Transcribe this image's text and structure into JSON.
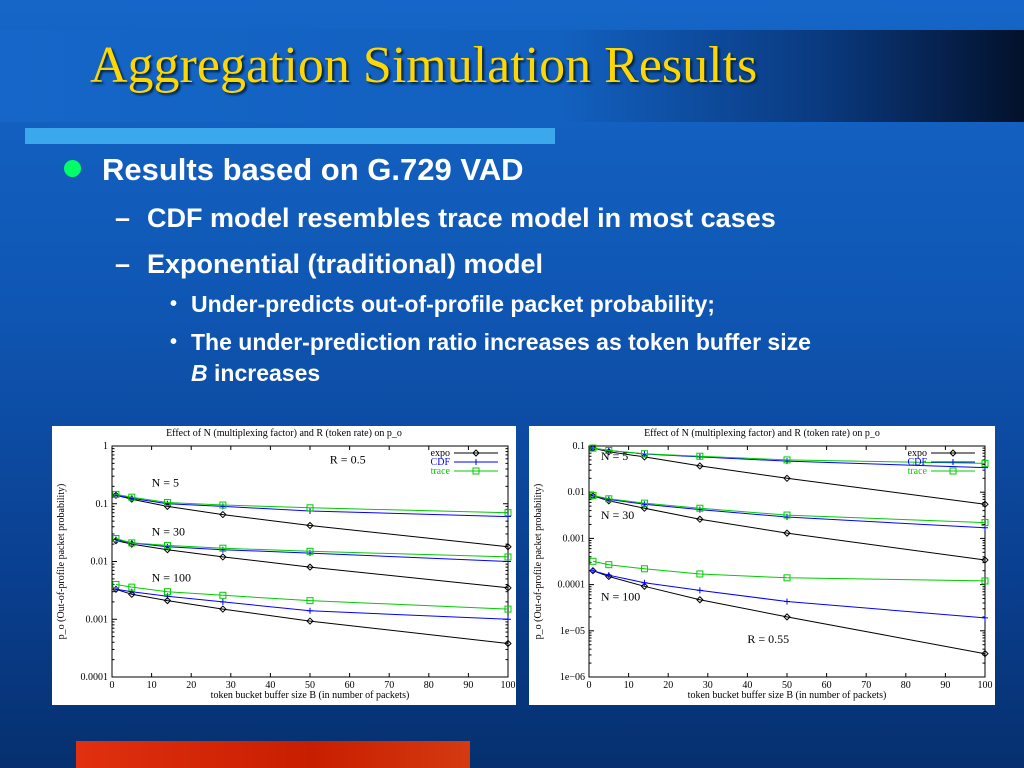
{
  "slide": {
    "title": "Aggregation Simulation Results",
    "bullets": {
      "level1": "Results based on G.729 VAD",
      "level2_a": "CDF model resembles trace model in most cases",
      "level2_b": "Exponential (traditional) model",
      "level3_a": "Under-predicts out-of-profile packet probability;",
      "level3_b_line1": "The under-prediction ratio increases as token buffer size",
      "level3_b_italic": "B",
      "level3_b_line2": " increases"
    },
    "colors": {
      "title": "#ffd700",
      "bullet": "#00ff66",
      "expo": "#000000",
      "cdf": "#0000ff",
      "trace": "#00cc00"
    }
  },
  "chart_data": [
    {
      "type": "line",
      "title": "Effect of N (multiplexing factor) and R (token rate) on p_o",
      "xlabel": "token bucket buffer size B (in number of packets)",
      "ylabel": "p_o (Out-of-profile packet probability)",
      "xlim": [
        0,
        100
      ],
      "ylim": [
        0.0001,
        1
      ],
      "yscale": "log",
      "xticks": [
        "0",
        "10",
        "20",
        "30",
        "40",
        "50",
        "60",
        "70",
        "80",
        "90",
        "100"
      ],
      "yticks": [
        "1",
        "0.1",
        "0.01",
        "0.001",
        "0.0001"
      ],
      "legend": [
        "expo",
        "CDF",
        "trace"
      ],
      "legend_position": "top-right",
      "annotations": [
        {
          "text": "R = 0.5",
          "x": 55,
          "y": 0.5
        },
        {
          "text": "N = 5",
          "x": 10,
          "y": 0.2
        },
        {
          "text": "N = 30",
          "x": 10,
          "y": 0.028
        },
        {
          "text": "N = 100",
          "x": 10,
          "y": 0.0045
        }
      ],
      "x": [
        1,
        5,
        14,
        28,
        50,
        100
      ],
      "series": [
        {
          "name": "expo",
          "group": "N = 5",
          "values": [
            0.14,
            0.12,
            0.09,
            0.065,
            0.042,
            0.018
          ]
        },
        {
          "name": "CDF",
          "group": "N = 5",
          "values": [
            0.14,
            0.125,
            0.1,
            0.09,
            0.075,
            0.06
          ]
        },
        {
          "name": "trace",
          "group": "N = 5",
          "values": [
            0.145,
            0.13,
            0.105,
            0.095,
            0.085,
            0.07
          ]
        },
        {
          "name": "expo",
          "group": "N = 30",
          "values": [
            0.023,
            0.02,
            0.016,
            0.012,
            0.008,
            0.0035
          ]
        },
        {
          "name": "CDF",
          "group": "N = 30",
          "values": [
            0.024,
            0.021,
            0.018,
            0.016,
            0.014,
            0.01
          ]
        },
        {
          "name": "trace",
          "group": "N = 30",
          "values": [
            0.025,
            0.021,
            0.019,
            0.017,
            0.015,
            0.012
          ]
        },
        {
          "name": "expo",
          "group": "N = 100",
          "values": [
            0.0033,
            0.0027,
            0.0021,
            0.0015,
            0.00093,
            0.00038
          ]
        },
        {
          "name": "CDF",
          "group": "N = 100",
          "values": [
            0.0033,
            0.003,
            0.0025,
            0.002,
            0.0014,
            0.001
          ]
        },
        {
          "name": "trace",
          "group": "N = 100",
          "values": [
            0.004,
            0.0036,
            0.003,
            0.0026,
            0.0021,
            0.0015
          ]
        }
      ]
    },
    {
      "type": "line",
      "title": "Effect of N (multiplexing factor) and R (token rate) on p_o",
      "xlabel": "token bucket buffer size B (in number of packets)",
      "ylabel": "p_o (Out-of-profile packet probability)",
      "xlim": [
        0,
        100
      ],
      "ylim": [
        1e-06,
        0.1
      ],
      "yscale": "log",
      "xticks": [
        "0",
        "10",
        "20",
        "30",
        "40",
        "50",
        "60",
        "70",
        "80",
        "90",
        "100"
      ],
      "yticks": [
        "0.1",
        "0.01",
        "0.001",
        "0.0001",
        "1e−05",
        "1e−06"
      ],
      "legend": [
        "expo",
        "CDF",
        "trace"
      ],
      "legend_position": "top-right",
      "annotations": [
        {
          "text": "N = 5",
          "x": 3,
          "y": 0.05
        },
        {
          "text": "N = 30",
          "x": 3,
          "y": 0.0026
        },
        {
          "text": "N = 100",
          "x": 3,
          "y": 4.5e-05
        },
        {
          "text": "R = 0.55",
          "x": 40,
          "y": 5.5e-06
        }
      ],
      "x": [
        1,
        5,
        14,
        28,
        50,
        100
      ],
      "series": [
        {
          "name": "expo",
          "group": "N = 5",
          "values": [
            0.09,
            0.075,
            0.058,
            0.037,
            0.02,
            0.0055
          ]
        },
        {
          "name": "CDF",
          "group": "N = 5",
          "values": [
            0.09,
            0.08,
            0.067,
            0.058,
            0.047,
            0.034
          ]
        },
        {
          "name": "trace",
          "group": "N = 5",
          "values": [
            0.09,
            0.08,
            0.068,
            0.06,
            0.05,
            0.042
          ]
        },
        {
          "name": "expo",
          "group": "N = 30",
          "values": [
            0.0083,
            0.0065,
            0.0045,
            0.0026,
            0.0013,
            0.00034
          ]
        },
        {
          "name": "CDF",
          "group": "N = 30",
          "values": [
            0.0085,
            0.007,
            0.0055,
            0.0042,
            0.0029,
            0.0017
          ]
        },
        {
          "name": "trace",
          "group": "N = 30",
          "values": [
            0.0085,
            0.0072,
            0.0058,
            0.0045,
            0.0032,
            0.0022
          ]
        },
        {
          "name": "expo",
          "group": "N = 100",
          "values": [
            0.0002,
            0.00015,
            9.2e-05,
            4.7e-05,
            2e-05,
            3.2e-06
          ]
        },
        {
          "name": "CDF",
          "group": "N = 100",
          "values": [
            0.0002,
            0.00016,
            0.00011,
            7.5e-05,
            4.3e-05,
            1.9e-05
          ]
        },
        {
          "name": "trace",
          "group": "N = 100",
          "values": [
            0.00032,
            0.00027,
            0.00022,
            0.00017,
            0.00014,
            0.00012
          ]
        }
      ]
    }
  ]
}
